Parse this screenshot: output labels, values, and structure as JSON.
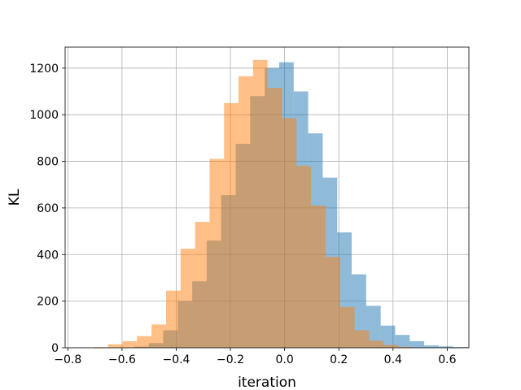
{
  "chart_data": {
    "type": "histogram",
    "title": "",
    "xlabel": "iteration",
    "ylabel": "KL",
    "xlim": [
      -0.81,
      0.68
    ],
    "ylim": [
      0,
      1290
    ],
    "grid": true,
    "xticks": [
      -0.8,
      -0.6,
      -0.4,
      -0.2,
      0.0,
      0.2,
      0.4,
      0.6
    ],
    "xtick_labels": [
      "−0.8",
      "−0.6",
      "−0.4",
      "−0.2",
      "0.0",
      "0.2",
      "0.4",
      "0.6"
    ],
    "yticks": [
      0,
      200,
      400,
      600,
      800,
      1000,
      1200
    ],
    "ytick_labels": [
      "0",
      "200",
      "400",
      "600",
      "800",
      "1000",
      "1200"
    ],
    "series": [
      {
        "color": "#1f77b4",
        "opacity": 0.5,
        "bin_start": -0.555,
        "bin_width": 0.0535,
        "counts": [
          5,
          20,
          75,
          200,
          285,
          460,
          655,
          875,
          1080,
          1200,
          1225,
          1100,
          920,
          730,
          495,
          315,
          180,
          95,
          55,
          28,
          10,
          6,
          3
        ]
      },
      {
        "color": "#ff7f0e",
        "opacity": 0.5,
        "bin_start": -0.705,
        "bin_width": 0.0535,
        "counts": [
          3,
          15,
          28,
          50,
          100,
          245,
          425,
          540,
          810,
          1050,
          1165,
          1235,
          1115,
          985,
          780,
          610,
          390,
          175,
          75,
          30,
          12,
          4
        ]
      }
    ]
  }
}
